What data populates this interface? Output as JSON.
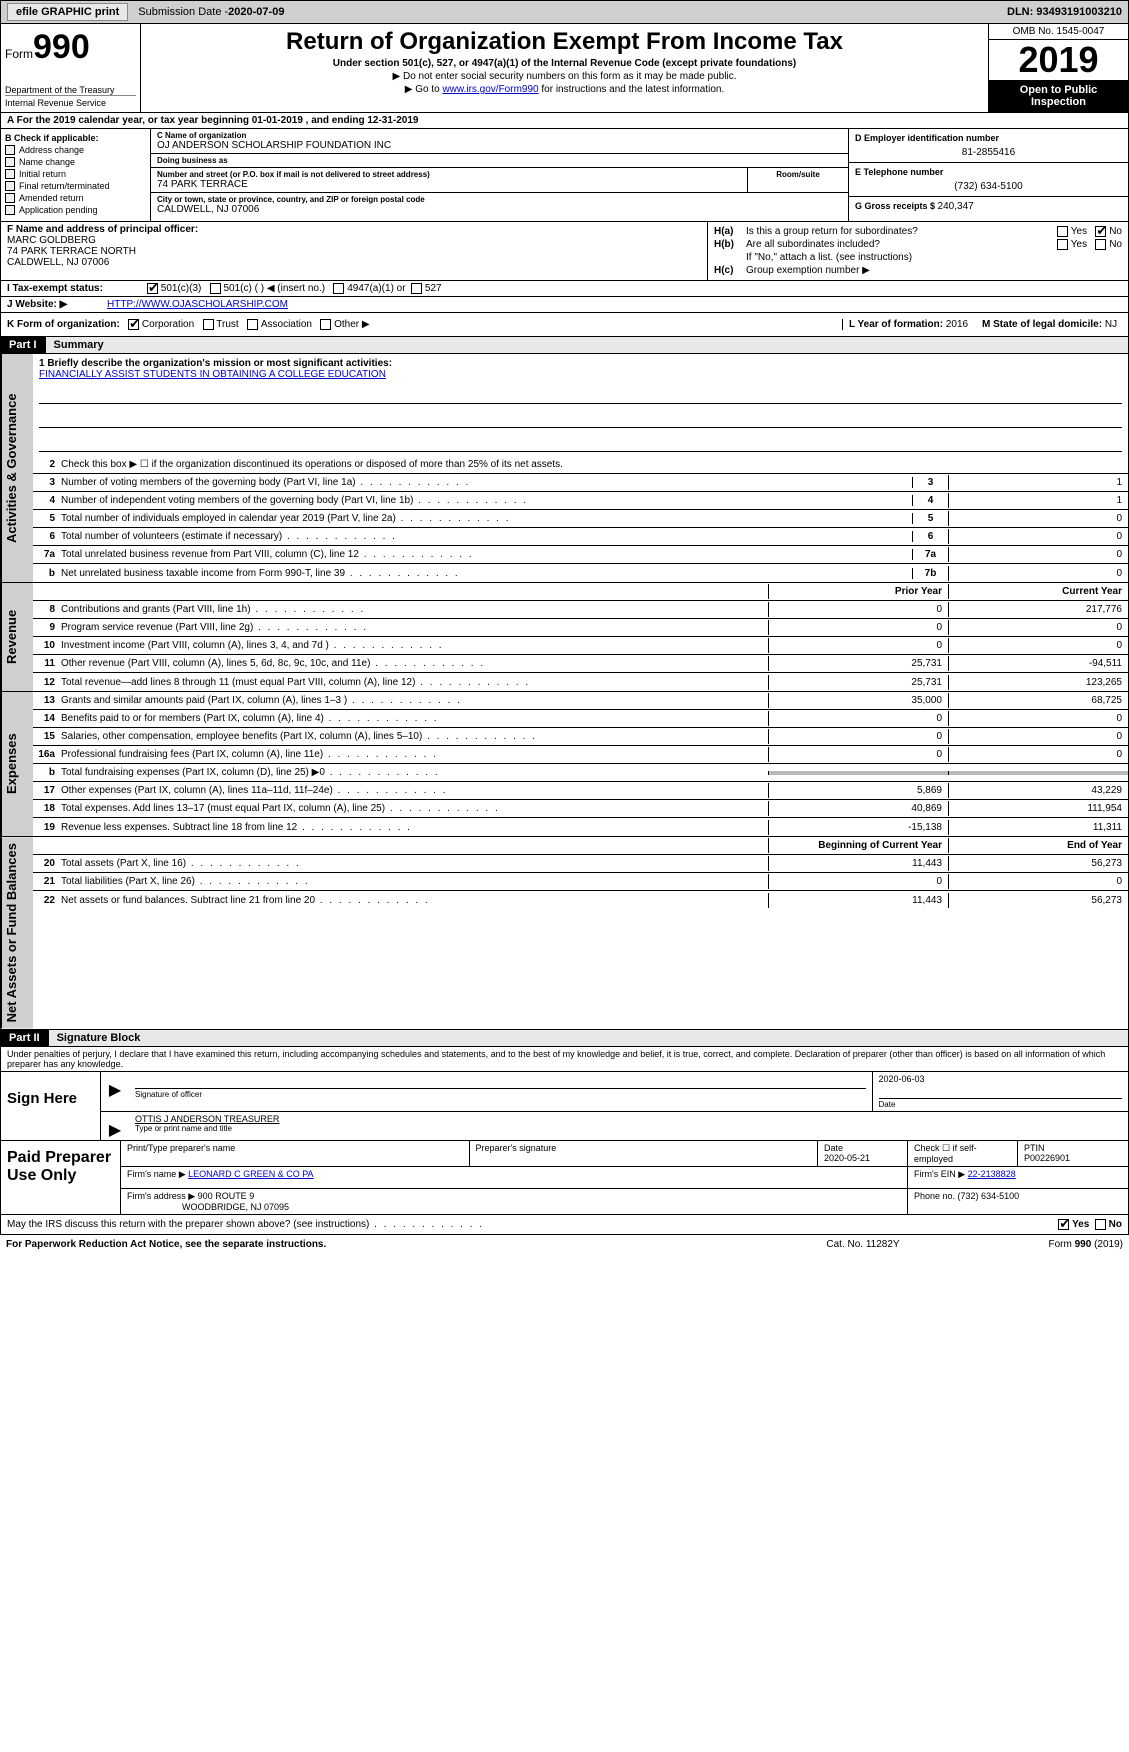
{
  "topbar": {
    "efile": "efile GRAPHIC print",
    "submission_label": "Submission Date - ",
    "submission_date": "2020-07-09",
    "dln_label": "DLN: ",
    "dln": "93493191003210"
  },
  "header": {
    "form_prefix": "Form",
    "form_number": "990",
    "department": "Department of the Treasury",
    "irs": "Internal Revenue Service",
    "title": "Return of Organization Exempt From Income Tax",
    "sub1": "Under section 501(c), 527, or 4947(a)(1) of the Internal Revenue Code (except private foundations)",
    "sub2": "▶ Do not enter social security numbers on this form as it may be made public.",
    "sub3_pre": "▶ Go to ",
    "sub3_link": "www.irs.gov/Form990",
    "sub3_post": " for instructions and the latest information.",
    "omb": "OMB No. 1545-0047",
    "year": "2019",
    "open": "Open to Public Inspection"
  },
  "rowA": {
    "text_pre": "A   For the 2019 calendar year, or tax year beginning ",
    "begin": "01-01-2019",
    "mid": "     , and ending ",
    "end": "12-31-2019"
  },
  "colB": {
    "label": "B Check if applicable:",
    "items": [
      "Address change",
      "Name change",
      "Initial return",
      "Final return/terminated",
      "Amended return",
      "Application pending"
    ]
  },
  "colC": {
    "name_lbl": "C Name of organization",
    "name": "OJ ANDERSON SCHOLARSHIP FOUNDATION INC",
    "dba_lbl": "Doing business as",
    "dba": "",
    "addr_lbl": "Number and street (or P.O. box if mail is not delivered to street address)",
    "room_lbl": "Room/suite",
    "addr": "74 PARK TERRACE",
    "city_lbl": "City or town, state or province, country, and ZIP or foreign postal code",
    "city": "CALDWELL, NJ  07006"
  },
  "colD": {
    "ein_lbl": "D Employer identification number",
    "ein": "81-2855416",
    "phone_lbl": "E Telephone number",
    "phone": "(732) 634-5100",
    "gross_lbl": "G Gross receipts $ ",
    "gross": "240,347"
  },
  "rowF": {
    "lbl": "F Name and address of principal officer:",
    "name": "MARC GOLDBERG",
    "addr1": "74 PARK TERRACE NORTH",
    "addr2": "CALDWELL, NJ  07006"
  },
  "rowH": {
    "ha_lbl": "H(a)",
    "ha_text": "Is this a group return for subordinates?",
    "hb_lbl": "H(b)",
    "hb_text": "Are all subordinates included?",
    "hb_note": "If \"No,\" attach a list. (see instructions)",
    "hc_lbl": "H(c)",
    "hc_text": "Group exemption number ▶",
    "yes": "Yes",
    "no": "No"
  },
  "rowI": {
    "lbl": "I   Tax-exempt status:",
    "opts": [
      "501(c)(3)",
      "501(c) (  ) ◀ (insert no.)",
      "4947(a)(1) or",
      "527"
    ]
  },
  "rowJ": {
    "lbl": "J   Website: ▶",
    "url": "HTTP://WWW.OJASCHOLARSHIP.COM"
  },
  "rowK": {
    "lbl": "K Form of organization:",
    "opts": [
      "Corporation",
      "Trust",
      "Association",
      "Other ▶"
    ],
    "l_lbl": "L Year of formation: ",
    "l_val": "2016",
    "m_lbl": "M State of legal domicile: ",
    "m_val": "NJ"
  },
  "part1": {
    "hdr": "Part I",
    "title": "Summary"
  },
  "summary": {
    "tabs": [
      "Activities & Governance",
      "Revenue",
      "Expenses",
      "Net Assets or Fund Balances"
    ],
    "mission_lbl": "1  Briefly describe the organization's mission or most significant activities:",
    "mission": "FINANCIALLY ASSIST STUDENTS IN OBTAINING A COLLEGE EDUCATION",
    "line2": "Check this box ▶ ☐ if the organization discontinued its operations or disposed of more than 25% of its net assets.",
    "activities": [
      {
        "n": "3",
        "t": "Number of voting members of the governing body (Part VI, line 1a)",
        "nb": "3",
        "v": "1"
      },
      {
        "n": "4",
        "t": "Number of independent voting members of the governing body (Part VI, line 1b)",
        "nb": "4",
        "v": "1"
      },
      {
        "n": "5",
        "t": "Total number of individuals employed in calendar year 2019 (Part V, line 2a)",
        "nb": "5",
        "v": "0"
      },
      {
        "n": "6",
        "t": "Total number of volunteers (estimate if necessary)",
        "nb": "6",
        "v": "0"
      },
      {
        "n": "7a",
        "t": "Total unrelated business revenue from Part VIII, column (C), line 12",
        "nb": "7a",
        "v": "0"
      },
      {
        "n": "b",
        "t": "Net unrelated business taxable income from Form 990-T, line 39",
        "nb": "7b",
        "v": "0"
      }
    ],
    "col_hdrs": {
      "prior": "Prior Year",
      "current": "Current Year"
    },
    "revenue": [
      {
        "n": "8",
        "t": "Contributions and grants (Part VIII, line 1h)",
        "p": "0",
        "c": "217,776"
      },
      {
        "n": "9",
        "t": "Program service revenue (Part VIII, line 2g)",
        "p": "0",
        "c": "0"
      },
      {
        "n": "10",
        "t": "Investment income (Part VIII, column (A), lines 3, 4, and 7d )",
        "p": "0",
        "c": "0"
      },
      {
        "n": "11",
        "t": "Other revenue (Part VIII, column (A), lines 5, 6d, 8c, 9c, 10c, and 11e)",
        "p": "25,731",
        "c": "-94,511"
      },
      {
        "n": "12",
        "t": "Total revenue—add lines 8 through 11 (must equal Part VIII, column (A), line 12)",
        "p": "25,731",
        "c": "123,265"
      }
    ],
    "expenses": [
      {
        "n": "13",
        "t": "Grants and similar amounts paid (Part IX, column (A), lines 1–3 )",
        "p": "35,000",
        "c": "68,725"
      },
      {
        "n": "14",
        "t": "Benefits paid to or for members (Part IX, column (A), line 4)",
        "p": "0",
        "c": "0"
      },
      {
        "n": "15",
        "t": "Salaries, other compensation, employee benefits (Part IX, column (A), lines 5–10)",
        "p": "0",
        "c": "0"
      },
      {
        "n": "16a",
        "t": "Professional fundraising fees (Part IX, column (A), line 11e)",
        "p": "0",
        "c": "0"
      },
      {
        "n": "b",
        "t": "Total fundraising expenses (Part IX, column (D), line 25) ▶0",
        "p": "",
        "c": "",
        "shade": true
      },
      {
        "n": "17",
        "t": "Other expenses (Part IX, column (A), lines 11a–11d, 11f–24e)",
        "p": "5,869",
        "c": "43,229"
      },
      {
        "n": "18",
        "t": "Total expenses. Add lines 13–17 (must equal Part IX, column (A), line 25)",
        "p": "40,869",
        "c": "111,954"
      },
      {
        "n": "19",
        "t": "Revenue less expenses. Subtract line 18 from line 12",
        "p": "-15,138",
        "c": "11,311"
      }
    ],
    "net_hdrs": {
      "begin": "Beginning of Current Year",
      "end": "End of Year"
    },
    "net": [
      {
        "n": "20",
        "t": "Total assets (Part X, line 16)",
        "p": "11,443",
        "c": "56,273"
      },
      {
        "n": "21",
        "t": "Total liabilities (Part X, line 26)",
        "p": "0",
        "c": "0"
      },
      {
        "n": "22",
        "t": "Net assets or fund balances. Subtract line 21 from line 20",
        "p": "11,443",
        "c": "56,273"
      }
    ]
  },
  "part2": {
    "hdr": "Part II",
    "title": "Signature Block",
    "perjury": "Under penalties of perjury, I declare that I have examined this return, including accompanying schedules and statements, and to the best of my knowledge and belief, it is true, correct, and complete. Declaration of preparer (other than officer) is based on all information of which preparer has any knowledge."
  },
  "sign": {
    "label": "Sign Here",
    "sig_lbl": "Signature of officer",
    "date": "2020-06-03",
    "date_lbl": "Date",
    "name": "OTTIS J ANDERSON  TREASURER",
    "name_lbl": "Type or print name and title"
  },
  "paid": {
    "label": "Paid Preparer Use Only",
    "hdr": [
      "Print/Type preparer's name",
      "Preparer's signature",
      "Date",
      "",
      "PTIN"
    ],
    "date": "2020-05-21",
    "check_lbl": "Check ☐ if self-employed",
    "ptin": "P00226901",
    "firm_lbl": "Firm's name    ▶",
    "firm": "LEONARD C GREEN & CO PA",
    "ein_lbl": "Firm's EIN ▶",
    "ein": "22-2138828",
    "addr_lbl": "Firm's address ▶",
    "addr1": "900 ROUTE 9",
    "addr2": "WOODBRIDGE, NJ  07095",
    "phone_lbl": "Phone no. ",
    "phone": "(732) 634-5100"
  },
  "footer": {
    "q": "May the IRS discuss this return with the preparer shown above? (see instructions)",
    "yes": "Yes",
    "no": "No",
    "pra": "For Paperwork Reduction Act Notice, see the separate instructions.",
    "cat": "Cat. No. 11282Y",
    "form": "Form 990 (2019)"
  }
}
